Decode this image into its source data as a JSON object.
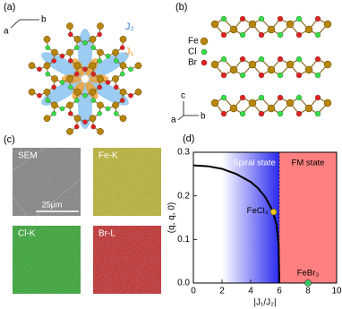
{
  "panel_a": {
    "label": "(a)",
    "axis_a": "a",
    "axis_b": "b",
    "j2": "J₂",
    "j1": "J₁"
  },
  "panel_b": {
    "label": "(b)",
    "legend": [
      "Fe",
      "Cl",
      "Br"
    ],
    "axis_c": "c",
    "axis_a": "a",
    "axis_b": "b"
  },
  "panel_c": {
    "label": "(c)",
    "maps": [
      "SEM",
      "Fe-K",
      "Cl-K",
      "Br-L"
    ],
    "scale_bar": "25μm"
  },
  "panel_d": {
    "label": "(d)"
  },
  "chart_data": {
    "type": "line",
    "xlabel": "|J₁/J₂|",
    "ylabel": "(q, q, 0)",
    "x": [
      0,
      1,
      2,
      3,
      4,
      4.5,
      5,
      5.5,
      5.8,
      5.95,
      6.0
    ],
    "series": [
      {
        "color": "#000000",
        "values": [
          0.27,
          0.268,
          0.262,
          0.25,
          0.232,
          0.218,
          0.198,
          0.168,
          0.135,
          0.09,
          0
        ]
      }
    ],
    "xlim": [
      0,
      10
    ],
    "xticks": [
      0,
      2,
      4,
      6,
      8,
      10
    ],
    "ylim": [
      0,
      0.3
    ],
    "yticks": [
      {
        "value": 0,
        "label": "0.0"
      },
      0.1,
      0.2,
      0.3
    ],
    "regions": [
      {
        "label": "Spiral state",
        "x": [
          2,
          6
        ],
        "color": "#2a2af0"
      },
      {
        "label": "FM state",
        "x": [
          6,
          10
        ],
        "color": "#ff8080"
      }
    ],
    "points": [
      {
        "label": "FeCl₃",
        "x": 5.6,
        "y": 0.163,
        "color": "#f5c518"
      },
      {
        "label": "FeBr₃",
        "x": 8,
        "y": 0,
        "color": "#33cc66"
      }
    ]
  }
}
